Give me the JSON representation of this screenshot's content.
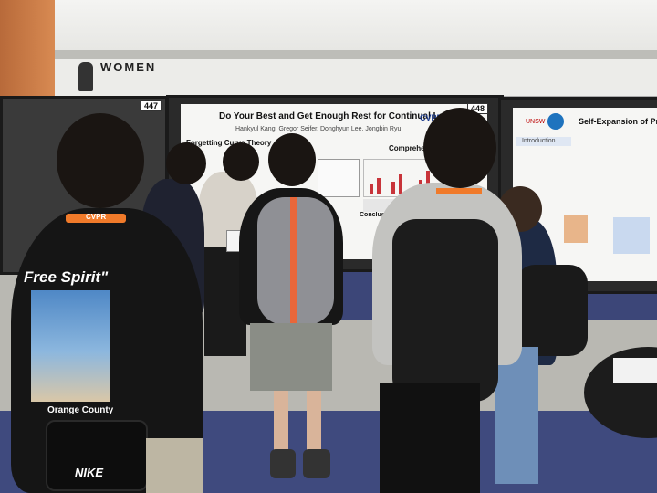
{
  "signage": {
    "restroom_sign": "WOMEN"
  },
  "booths": {
    "left_number": "447",
    "center_number": "448"
  },
  "poster_center": {
    "title": "Do Your Best and Get Enough Rest for Continual Learning",
    "authors": "Hankyul Kang, Gregor Seifer, Donghyun Lee, Jongbin Ryu",
    "logo": "CVPR",
    "section_left": "Forgetting Curve Theory",
    "section_right": "Comprehensive benchmark",
    "section_bottom": "Conclusion"
  },
  "poster_right": {
    "title": "Self-Expansion of Pre-trained",
    "logo_left": "UNSW",
    "logo_right": "CSIRO",
    "section": "Introduction"
  },
  "clothing": {
    "shirt_text": "Free Spirit\"",
    "shirt_subtext": "Orange County",
    "bag_brand": "NIKE",
    "lanyard_text": "CVPR"
  },
  "colors": {
    "carpet": "#3f4a7e",
    "lanyard": "#f07a2a",
    "poster_accent": "#c8343a"
  }
}
